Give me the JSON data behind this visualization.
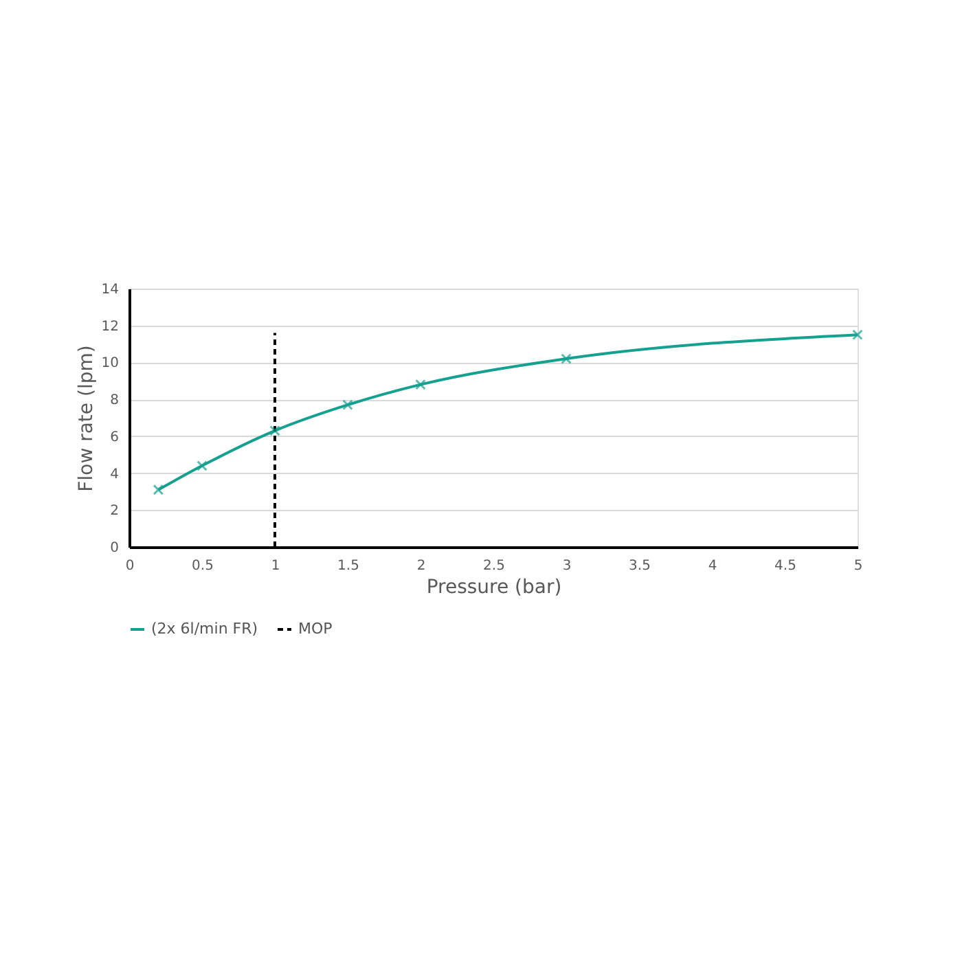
{
  "chart_data": {
    "type": "line",
    "xlabel": "Pressure (bar)",
    "ylabel": "Flow rate (lpm)",
    "xlim": [
      0,
      5
    ],
    "xticks": [
      0,
      0.5,
      1,
      1.5,
      2,
      2.5,
      3,
      3.5,
      4,
      4.5,
      5
    ],
    "ylim": [
      0,
      14
    ],
    "yticks": [
      0,
      2,
      4,
      6,
      8,
      10,
      12,
      14
    ],
    "grid": "y",
    "legend": "bottom",
    "series": [
      {
        "name": "(2x 6l/min FR)",
        "color": "#16a090",
        "x": [
          0.2,
          0.5,
          1,
          1.5,
          2,
          3,
          5
        ],
        "values": [
          3.1,
          4.4,
          6.3,
          7.7,
          8.8,
          10.2,
          11.5
        ],
        "marker": "cross",
        "line_style": "solid"
      },
      {
        "name": "MOP",
        "color": "#000000",
        "x": [
          1,
          1
        ],
        "values": [
          0,
          11.6
        ],
        "marker": "none",
        "line_style": "dashed"
      }
    ]
  }
}
